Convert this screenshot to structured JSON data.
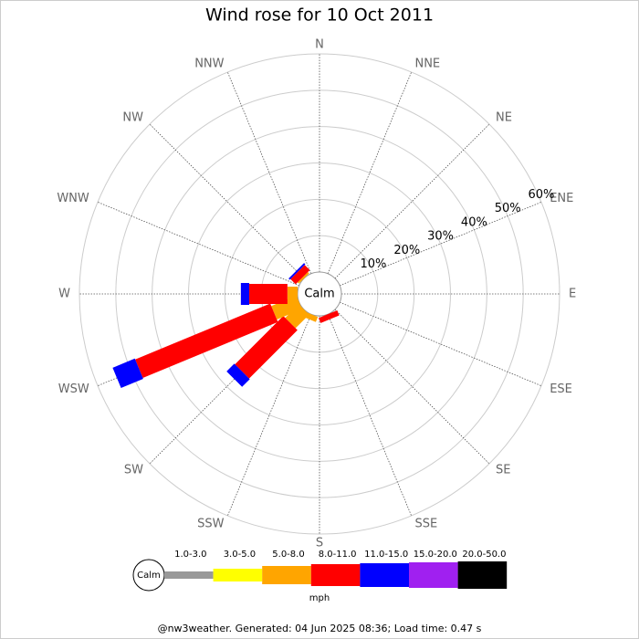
{
  "chart_data": {
    "type": "windrose",
    "title": "Wind rose for 10 Oct 2011",
    "categories": [
      "N",
      "NNE",
      "NE",
      "ENE",
      "E",
      "ESE",
      "SE",
      "SSE",
      "S",
      "SSW",
      "SW",
      "WSW",
      "W",
      "WNW",
      "NW",
      "NNW"
    ],
    "calm_label": "Calm",
    "rlim": [
      0,
      60
    ],
    "rticks": [
      {
        "value": 10,
        "label": "10%"
      },
      {
        "value": 20,
        "label": "20%"
      },
      {
        "value": 30,
        "label": "30%"
      },
      {
        "value": 40,
        "label": "40%"
      },
      {
        "value": 50,
        "label": "50%"
      },
      {
        "value": 60,
        "label": "60%"
      }
    ],
    "series": [
      {
        "name": "1.0-3.0",
        "color": "#999999",
        "values": [
          0,
          0,
          0,
          0,
          0,
          0,
          0,
          0,
          0,
          0,
          0,
          0,
          0,
          0,
          0,
          0
        ]
      },
      {
        "name": "3.0-5.0",
        "color": "#ffff00",
        "values": [
          0,
          0,
          0,
          0,
          0,
          0,
          0,
          0,
          0,
          0,
          0,
          0,
          0,
          0,
          0,
          0
        ]
      },
      {
        "name": "5.0-8.0",
        "color": "#ffa500",
        "values": [
          0,
          0,
          0,
          0,
          0,
          0,
          0,
          0,
          0,
          1.5,
          5.3,
          7.5,
          2.8,
          0,
          0.5,
          0
        ]
      },
      {
        "name": "8.0-11.0",
        "color": "#ff0000",
        "values": [
          0,
          0,
          0,
          0,
          0,
          0,
          0,
          1.5,
          0,
          0,
          18.8,
          40.2,
          10.5,
          0,
          2.0,
          0
        ]
      },
      {
        "name": "11.0-15.0",
        "color": "#0000ff",
        "values": [
          0,
          0,
          0,
          0,
          0,
          0,
          0,
          0,
          0,
          0,
          3.0,
          6.6,
          2.3,
          0,
          0.5,
          0
        ]
      },
      {
        "name": "15.0-20.0",
        "color": "#a020f0",
        "values": [
          0,
          0,
          0,
          0,
          0,
          0,
          0,
          0,
          0,
          0,
          0,
          0,
          0,
          0,
          0,
          0
        ]
      },
      {
        "name": "20.0-50.0",
        "color": "#000000",
        "values": [
          0,
          0,
          0,
          0,
          0,
          0,
          0,
          0,
          0,
          0,
          0,
          0,
          0,
          0,
          0,
          0
        ]
      }
    ],
    "legend_unit": "mph",
    "footer": "@nw3weather. Generated: 04 Jun 2025 08:36; Load time: 0.47 s"
  }
}
